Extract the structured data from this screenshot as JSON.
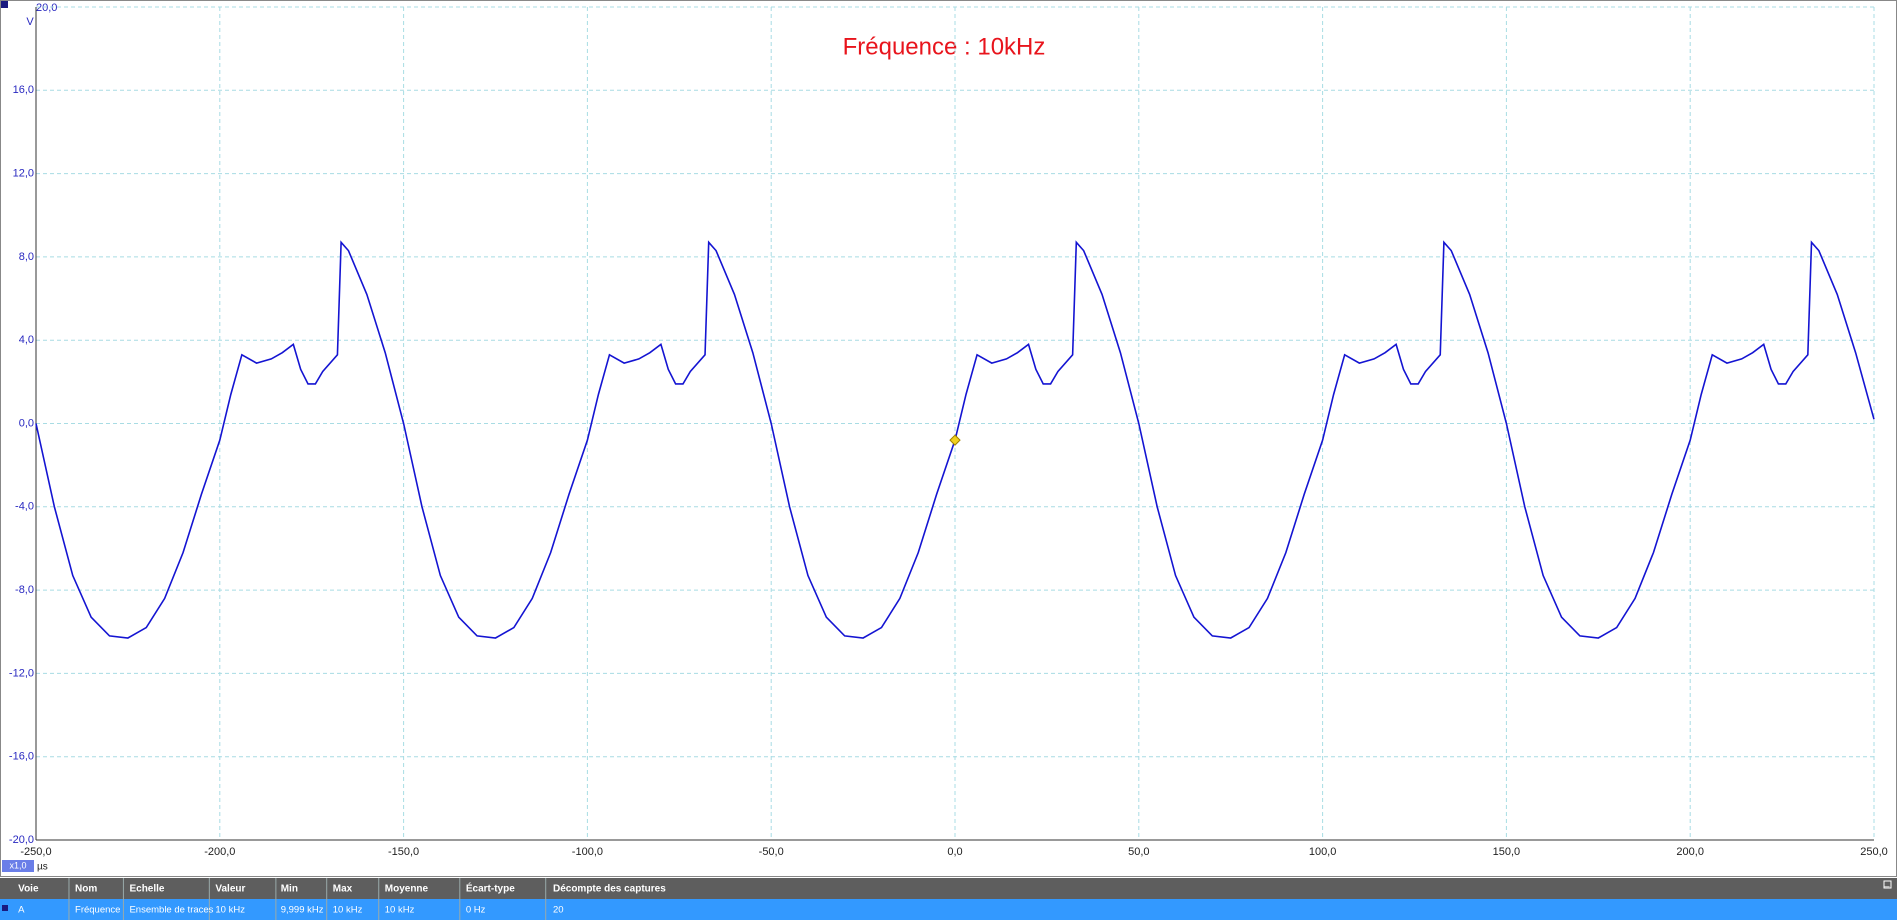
{
  "chart_data": {
    "type": "line",
    "annotation": "Fréquence : 10kHz",
    "y_unit": "V",
    "x_unit": "µs",
    "zoom_label": "x1,0",
    "color": "#1414d2",
    "x": [
      -250,
      -245,
      -240,
      -235,
      -230,
      -225,
      -220,
      -215,
      -210,
      -205,
      -200,
      -197,
      -194,
      -190,
      -186,
      -183,
      -180,
      -178,
      -176,
      -174,
      -172,
      -168,
      -167,
      -165,
      -160,
      -155,
      -150,
      -145,
      -140,
      -135,
      -130,
      -125,
      -120,
      -115,
      -110,
      -105,
      -100,
      -97,
      -94,
      -90,
      -86,
      -83,
      -80,
      -78,
      -76,
      -74,
      -72,
      -68,
      -67,
      -65,
      -60,
      -55,
      -50,
      -45,
      -40,
      -35,
      -30,
      -25,
      -20,
      -15,
      -10,
      -5,
      0,
      3,
      6,
      10,
      14,
      17,
      20,
      22,
      24,
      26,
      28,
      32,
      33,
      35,
      40,
      45,
      50,
      55,
      60,
      65,
      70,
      75,
      80,
      85,
      90,
      95,
      100,
      103,
      106,
      110,
      114,
      117,
      120,
      122,
      124,
      126,
      128,
      132,
      133,
      135,
      140,
      145,
      150,
      155,
      160,
      165,
      170,
      175,
      180,
      185,
      190,
      195,
      200,
      203,
      206,
      210,
      214,
      217,
      220,
      222,
      224,
      226,
      228,
      232,
      233,
      235,
      240,
      245,
      250
    ],
    "values": [
      0,
      -4.0,
      -7.3,
      -9.3,
      -10.2,
      -10.3,
      -9.8,
      -8.4,
      -6.2,
      -3.4,
      -0.8,
      1.4,
      3.3,
      2.9,
      3.1,
      3.4,
      3.8,
      2.6,
      1.9,
      1.9,
      2.5,
      3.3,
      8.7,
      8.3,
      6.2,
      3.4,
      0,
      -4.0,
      -7.3,
      -9.3,
      -10.2,
      -10.3,
      -9.8,
      -8.4,
      -6.2,
      -3.4,
      -0.8,
      1.4,
      3.3,
      2.9,
      3.1,
      3.4,
      3.8,
      2.6,
      1.9,
      1.9,
      2.5,
      3.3,
      8.7,
      8.3,
      6.2,
      3.4,
      0,
      -4.0,
      -7.3,
      -9.3,
      -10.2,
      -10.3,
      -9.8,
      -8.4,
      -6.2,
      -3.4,
      -0.8,
      1.4,
      3.3,
      2.9,
      3.1,
      3.4,
      3.8,
      2.6,
      1.9,
      1.9,
      2.5,
      3.3,
      8.7,
      8.3,
      6.2,
      3.4,
      0,
      -4.0,
      -7.3,
      -9.3,
      -10.2,
      -10.3,
      -9.8,
      -8.4,
      -6.2,
      -3.4,
      -0.8,
      1.4,
      3.3,
      2.9,
      3.1,
      3.4,
      3.8,
      2.6,
      1.9,
      1.9,
      2.5,
      3.3,
      8.7,
      8.3,
      6.2,
      3.4,
      0,
      -4.0,
      -7.3,
      -9.3,
      -10.2,
      -10.3,
      -9.8,
      -8.4,
      -6.2,
      -3.4,
      -0.8,
      1.4,
      3.3,
      2.9,
      3.1,
      3.4,
      3.8,
      2.6,
      1.9,
      1.9,
      2.5,
      3.3,
      8.7,
      8.3,
      6.2,
      3.4,
      0.2
    ],
    "trigger_marker": {
      "x": 0,
      "y": -0.8
    },
    "xlim": [
      -250,
      250
    ],
    "ylim": [
      -20,
      20
    ],
    "xticks": [
      {
        "value": -250,
        "label": "-250,0"
      },
      {
        "value": -200,
        "label": "-200,0"
      },
      {
        "value": -150,
        "label": "-150,0"
      },
      {
        "value": -100,
        "label": "-100,0"
      },
      {
        "value": -50,
        "label": "-50,0"
      },
      {
        "value": 0,
        "label": "0,0"
      },
      {
        "value": 50,
        "label": "50,0"
      },
      {
        "value": 100,
        "label": "100,0"
      },
      {
        "value": 150,
        "label": "150,0"
      },
      {
        "value": 200,
        "label": "200,0"
      },
      {
        "value": 250,
        "label": "250,0"
      }
    ],
    "yticks": [
      {
        "value": 20,
        "label": "20,0"
      },
      {
        "value": 16,
        "label": "16,0"
      },
      {
        "value": 12,
        "label": "12,0"
      },
      {
        "value": 8,
        "label": "8,0"
      },
      {
        "value": 4,
        "label": "4,0"
      },
      {
        "value": 0,
        "label": "0,0"
      },
      {
        "value": -4,
        "label": "-4,0"
      },
      {
        "value": -8,
        "label": "-8,0"
      },
      {
        "value": -12,
        "label": "-12,0"
      },
      {
        "value": -16,
        "label": "-16,0"
      },
      {
        "value": -20,
        "label": "-20,0"
      }
    ],
    "grid": true
  },
  "measurements": {
    "columns": [
      "Voie",
      "Nom",
      "Echelle",
      "Valeur",
      "Min",
      "Max",
      "Moyenne",
      "Écart-type",
      "Décompte des captures"
    ],
    "rows": [
      [
        "A",
        "Fréquence",
        "Ensemble de traces",
        "10 kHz",
        "9,999 kHz",
        "10 kHz",
        "10 kHz",
        "0 Hz",
        "20"
      ]
    ]
  }
}
